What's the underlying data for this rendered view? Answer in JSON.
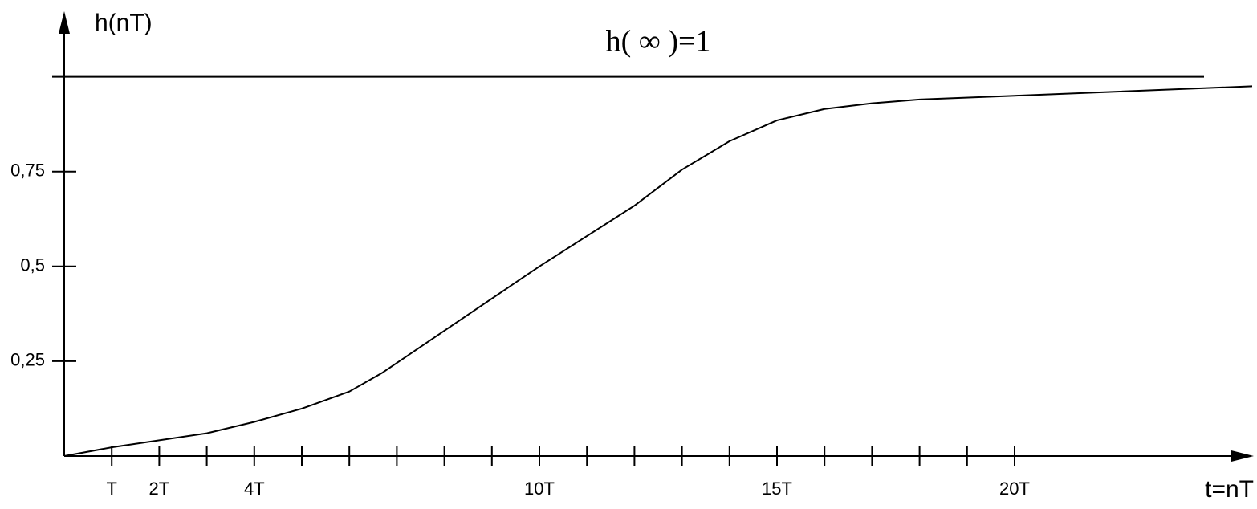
{
  "chart_data": {
    "type": "line",
    "y_label": "h(nT)",
    "x_label": "t=nT",
    "x": [
      0,
      1,
      3,
      4,
      5,
      6,
      6.7,
      10,
      12,
      13,
      14,
      15,
      16,
      17,
      18,
      20,
      25
    ],
    "series": [
      {
        "color": "#000000",
        "values": [
          0,
          0.023,
          0.06,
          0.09,
          0.125,
          0.17,
          0.22,
          0.5,
          0.66,
          0.755,
          0.83,
          0.885,
          0.915,
          0.93,
          0.94,
          0.95,
          0.975
        ]
      }
    ],
    "xlim": [
      0,
      25
    ],
    "ylim": [
      0,
      1.16
    ],
    "xticks": [
      {
        "value": 1,
        "label": "T"
      },
      {
        "value": 2,
        "label": "2T"
      },
      {
        "value": 4,
        "label": "4T"
      },
      {
        "value": 10,
        "label": "10T"
      },
      {
        "value": 15,
        "label": "15T"
      },
      {
        "value": 20,
        "label": "20T"
      }
    ],
    "xminorticks": [
      3,
      5,
      6,
      7,
      8,
      9,
      11,
      12,
      13,
      14,
      16,
      17,
      18,
      19
    ],
    "yticks": [
      {
        "value": 0.25,
        "label": "0,25"
      },
      {
        "value": 0.5,
        "label": "0,5"
      },
      {
        "value": 0.75,
        "label": "0,75"
      }
    ],
    "reference_line": {
      "value": 1,
      "label": "h( ∞ )=1"
    }
  }
}
